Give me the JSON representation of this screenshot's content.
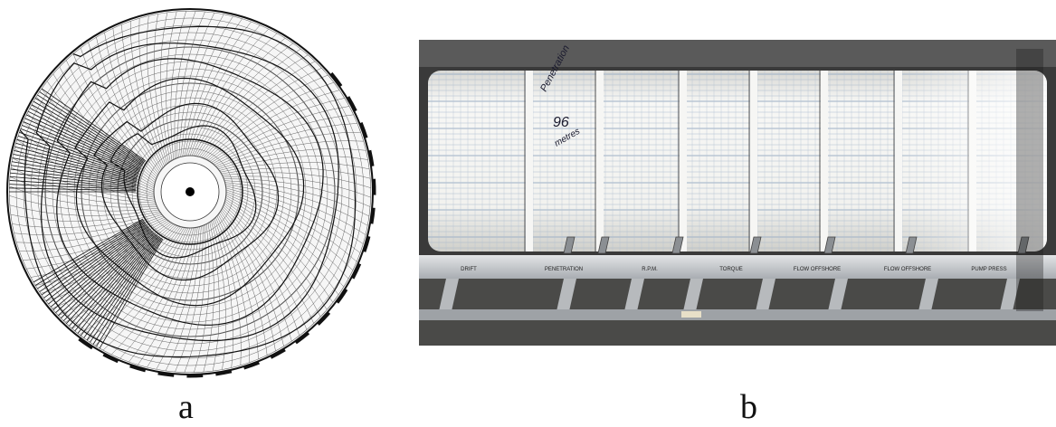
{
  "captions": {
    "a": "a",
    "b": "b"
  },
  "panel_b": {
    "rail_labels": [
      "DRIFT",
      "PENETRATION",
      "R.P.M.",
      "TORQUE",
      "FLOW OFFSHORE",
      "FLOW OFFSHORE",
      "PUMP PRESS"
    ],
    "handwritten_note": [
      "Penetration",
      "96",
      "metres"
    ]
  },
  "colors": {
    "paper": "#f4f4f2",
    "ink": "#1a1a1a",
    "grid_blue": "#9db0c6",
    "rail": "#c9ccd0",
    "frame_dark": "#2b2b2b"
  }
}
